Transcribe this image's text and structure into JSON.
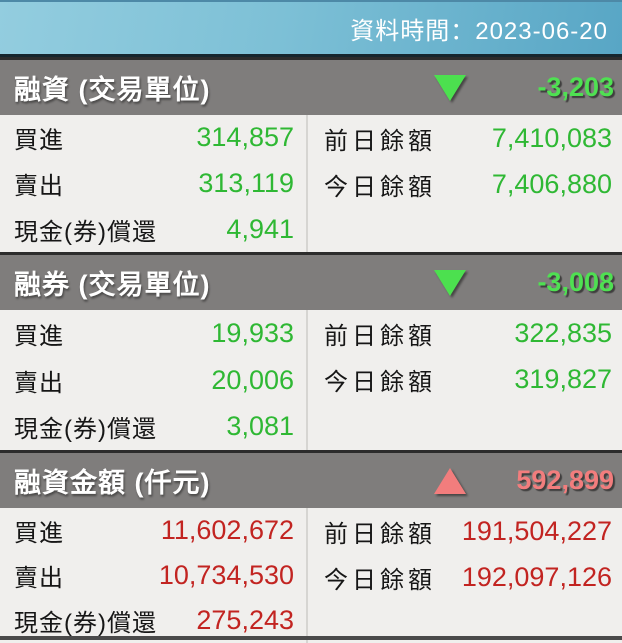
{
  "topbar": {
    "label": "資料時間：2023-06-20"
  },
  "colors": {
    "value_green": "#2fb834",
    "value_red": "#c22421",
    "header_change_green": "#4fe052",
    "header_change_red": "#f27d7d",
    "section_header_bg": "#7f7d7c",
    "topbar_blue_left": "#93cddf",
    "topbar_blue_right": "#58a6c5",
    "content_bg": "#f0efed"
  },
  "sections": [
    {
      "title": "融資 (交易單位)",
      "indicator_icon": "down-triangle-icon",
      "change": "-3,203",
      "left_rows": [
        {
          "label": "買進",
          "value": "314,857"
        },
        {
          "label": "賣出",
          "value": "313,119"
        },
        {
          "label": "現金(券)償還",
          "value": "4,941"
        }
      ],
      "right_rows": [
        {
          "label": "前日餘額",
          "value": "7,410,083"
        },
        {
          "label": "今日餘額",
          "value": "7,406,880"
        }
      ]
    },
    {
      "title": "融券 (交易單位)",
      "indicator_icon": "down-triangle-icon",
      "change": "-3,008",
      "left_rows": [
        {
          "label": "買進",
          "value": "19,933"
        },
        {
          "label": "賣出",
          "value": "20,006"
        },
        {
          "label": "現金(券)償還",
          "value": "3,081"
        }
      ],
      "right_rows": [
        {
          "label": "前日餘額",
          "value": "322,835"
        },
        {
          "label": "今日餘額",
          "value": "319,827"
        }
      ]
    },
    {
      "title": "融資金額 (仟元)",
      "indicator_icon": "up-triangle-icon",
      "change": "592,899",
      "left_rows": [
        {
          "label": "買進",
          "value": "11,602,672"
        },
        {
          "label": "賣出",
          "value": "10,734,530"
        },
        {
          "label": "現金(券)償還",
          "value": "275,243"
        }
      ],
      "right_rows": [
        {
          "label": "前日餘額",
          "value": "191,504,227"
        },
        {
          "label": "今日餘額",
          "value": "192,097,126"
        }
      ]
    }
  ]
}
